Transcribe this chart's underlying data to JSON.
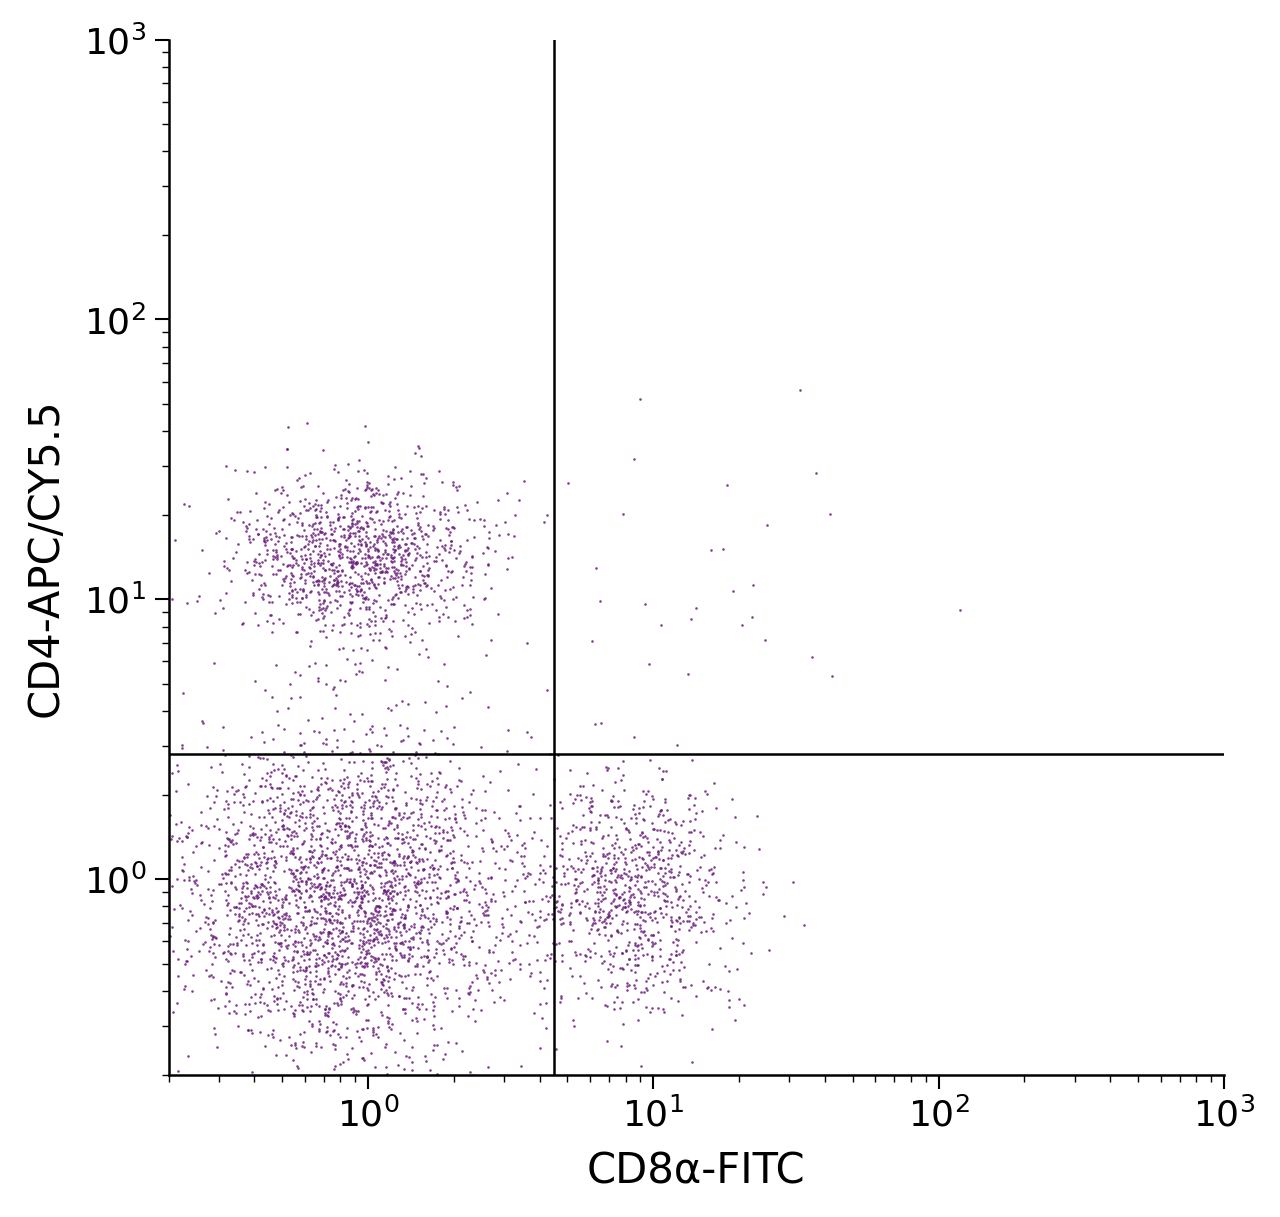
{
  "xlabel": "CD8α-FITC",
  "ylabel": "CD4-APC/CY5.5",
  "dot_color": "#6B1F7C",
  "background_color": "#ffffff",
  "xlim": [
    0.2,
    1000
  ],
  "ylim": [
    0.2,
    1000
  ],
  "gate_x": 4.5,
  "gate_y": 2.8,
  "xlabel_fontsize": 30,
  "ylabel_fontsize": 30,
  "tick_fontsize": 26,
  "dot_size": 3.5,
  "dot_alpha": 0.85,
  "clusters": {
    "Q2_top_left": {
      "x_center_log": -0.05,
      "y_center_log": 1.15,
      "x_spread": 0.22,
      "y_spread": 0.15,
      "n_points": 1200
    },
    "Q3_bottom_left": {
      "x_center_log": -0.08,
      "y_center_log": -0.05,
      "x_spread": 0.3,
      "y_spread": 0.28,
      "n_points": 2800
    },
    "Q4_bottom_right": {
      "x_center_log": 0.92,
      "y_center_log": -0.05,
      "x_spread": 0.18,
      "y_spread": 0.22,
      "n_points": 900
    },
    "Q1_top_right_sparse": {
      "x_center_log": 1.2,
      "y_center_log": 1.1,
      "x_spread": 0.38,
      "y_spread": 0.3,
      "n_points": 30
    }
  }
}
